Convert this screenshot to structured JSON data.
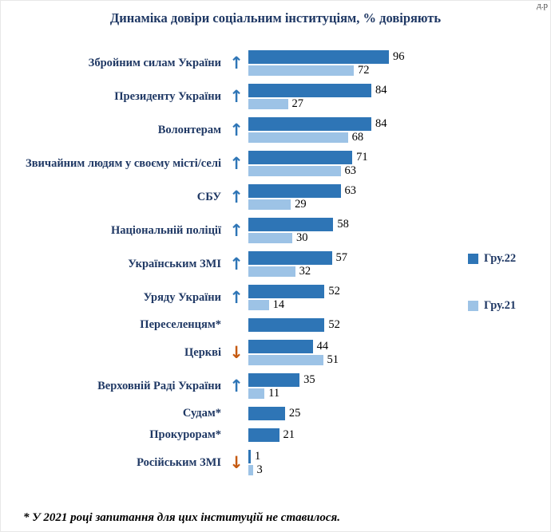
{
  "corner_text": "д.р",
  "title": "Динаміка довіри соціальним інституціям, % довіряють",
  "footnote": "* У 2021 році запитання для цих інституцій не ставилося.",
  "legend": {
    "items": [
      {
        "label": "Гру.22",
        "color": "#2E75B6"
      },
      {
        "label": "Гру.21",
        "color": "#9DC3E6"
      }
    ]
  },
  "colors": {
    "dec22": "#2E75B6",
    "dec21": "#9DC3E6",
    "trend_up": "#2E75B6",
    "trend_down": "#C55A11",
    "title_text": "#1F3864"
  },
  "chart_data": {
    "type": "bar",
    "orientation": "horizontal",
    "title": "Динаміка довіри соціальним інституціям, % довіряють",
    "xlabel": "",
    "ylabel": "",
    "xlim": [
      0,
      100
    ],
    "grid": false,
    "legend_position": "right",
    "series_names": [
      "Гру.22",
      "Гру.21"
    ],
    "rows": [
      {
        "label": "Збройним силам України",
        "dec22": 96,
        "dec21": 72,
        "trend": "up"
      },
      {
        "label": "Президенту України",
        "dec22": 84,
        "dec21": 27,
        "trend": "up"
      },
      {
        "label": "Волонтерам",
        "dec22": 84,
        "dec21": 68,
        "trend": "up"
      },
      {
        "label": "Звичайним людям у своєму місті/селі",
        "dec22": 71,
        "dec21": 63,
        "trend": "up"
      },
      {
        "label": "СБУ",
        "dec22": 63,
        "dec21": 29,
        "trend": "up"
      },
      {
        "label": "Національній поліції",
        "dec22": 58,
        "dec21": 30,
        "trend": "up"
      },
      {
        "label": "Українським ЗМІ",
        "dec22": 57,
        "dec21": 32,
        "trend": "up"
      },
      {
        "label": "Уряду України",
        "dec22": 52,
        "dec21": 14,
        "trend": "up"
      },
      {
        "label": "Переселенцям*",
        "dec22": 52,
        "dec21": null,
        "trend": null
      },
      {
        "label": "Церкві",
        "dec22": 44,
        "dec21": 51,
        "trend": "down"
      },
      {
        "label": "Верховній Раді України",
        "dec22": 35,
        "dec21": 11,
        "trend": "up"
      },
      {
        "label": "Судам*",
        "dec22": 25,
        "dec21": null,
        "trend": null
      },
      {
        "label": "Прокурорам*",
        "dec22": 21,
        "dec21": null,
        "trend": null
      },
      {
        "label": "Російським ЗМІ",
        "dec22": 1,
        "dec21": 3,
        "trend": "down"
      }
    ]
  }
}
